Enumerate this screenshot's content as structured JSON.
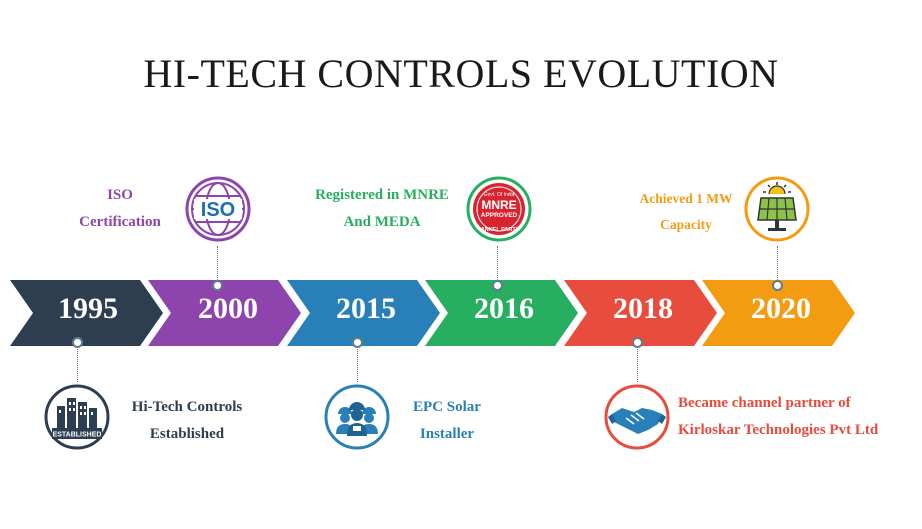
{
  "title": "HI-TECH CONTROLS EVOLUTION",
  "timeline": [
    {
      "year": "1995",
      "color": "#2c3e50"
    },
    {
      "year": "2000",
      "color": "#8e44ad"
    },
    {
      "year": "2015",
      "color": "#2980b9"
    },
    {
      "year": "2016",
      "color": "#27ae60"
    },
    {
      "year": "2018",
      "color": "#e74c3c"
    },
    {
      "year": "2020",
      "color": "#f39c12"
    }
  ],
  "events": {
    "e1995": {
      "line1": "Hi-Tech Controls",
      "line2": "Established",
      "color": "#2c3e50",
      "icon": "established-building-icon",
      "badge_text": "ESTABLISHED"
    },
    "e2000": {
      "line1": "ISO",
      "line2": "Certification",
      "color": "#8e44ad",
      "icon": "iso-globe-icon",
      "badge_text": "ISO"
    },
    "e2015": {
      "line1": "EPC Solar",
      "line2": "Installer",
      "color": "#2980b9",
      "icon": "workers-icon"
    },
    "e2016": {
      "line1": "Registered in MNRE",
      "line2": "And MEDA",
      "color": "#27ae60",
      "icon": "mnre-approved-seal-icon",
      "badge_top": "Govt. Of India",
      "badge_main": "MNRE",
      "badge_sub": "APPROVED",
      "badge_bottom": "ANNEL PARTI"
    },
    "e2018": {
      "line1": "Became channel partner of",
      "line2": "Kirloskar Technologies Pvt Ltd",
      "color": "#e74c3c",
      "icon": "handshake-icon"
    },
    "e2020": {
      "line1": "Achieved 1 MW",
      "line2": "Capacity",
      "color": "#f39c12",
      "icon": "solar-panel-icon"
    }
  }
}
